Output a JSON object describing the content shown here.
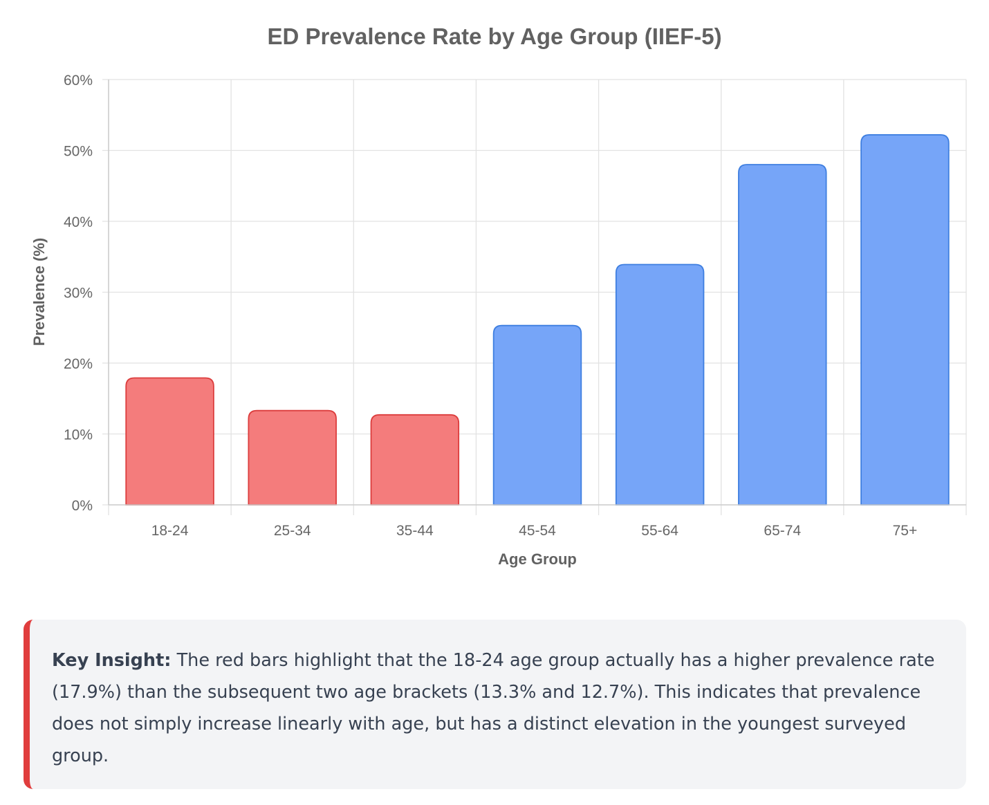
{
  "chart_data": {
    "type": "bar",
    "title": "ED Prevalence Rate by Age Group (IIEF-5)",
    "xlabel": "Age Group",
    "ylabel": "Prevalence (%)",
    "categories": [
      "18-24",
      "25-34",
      "35-44",
      "45-54",
      "55-64",
      "65-74",
      "75+"
    ],
    "values": [
      17.9,
      13.3,
      12.7,
      25.3,
      33.9,
      48.0,
      52.2
    ],
    "highlighted": [
      true,
      true,
      true,
      false,
      false,
      false,
      false
    ],
    "ylim": [
      0,
      60
    ],
    "yticks": [
      0,
      10,
      20,
      30,
      40,
      50,
      60
    ],
    "ytick_suffix": "%",
    "grid": true,
    "legend": "none",
    "colors": {
      "highlight_fill": "#f47c7c",
      "highlight_stroke": "#dc3d3d",
      "normal_fill": "#76a5f8",
      "normal_stroke": "#3f7fe0",
      "grid": "#e2e2e2",
      "axis": "#cccccc"
    }
  },
  "insight": {
    "label": "Key Insight:",
    "text": " The red bars highlight that the 18-24 age group actually has a higher prevalence rate (17.9%) than the subsequent two age brackets (13.3% and 12.7%). This indicates that prevalence does not simply increase linearly with age, but has a distinct elevation in the youngest surveyed group.",
    "accent_color": "#e03d3d"
  }
}
